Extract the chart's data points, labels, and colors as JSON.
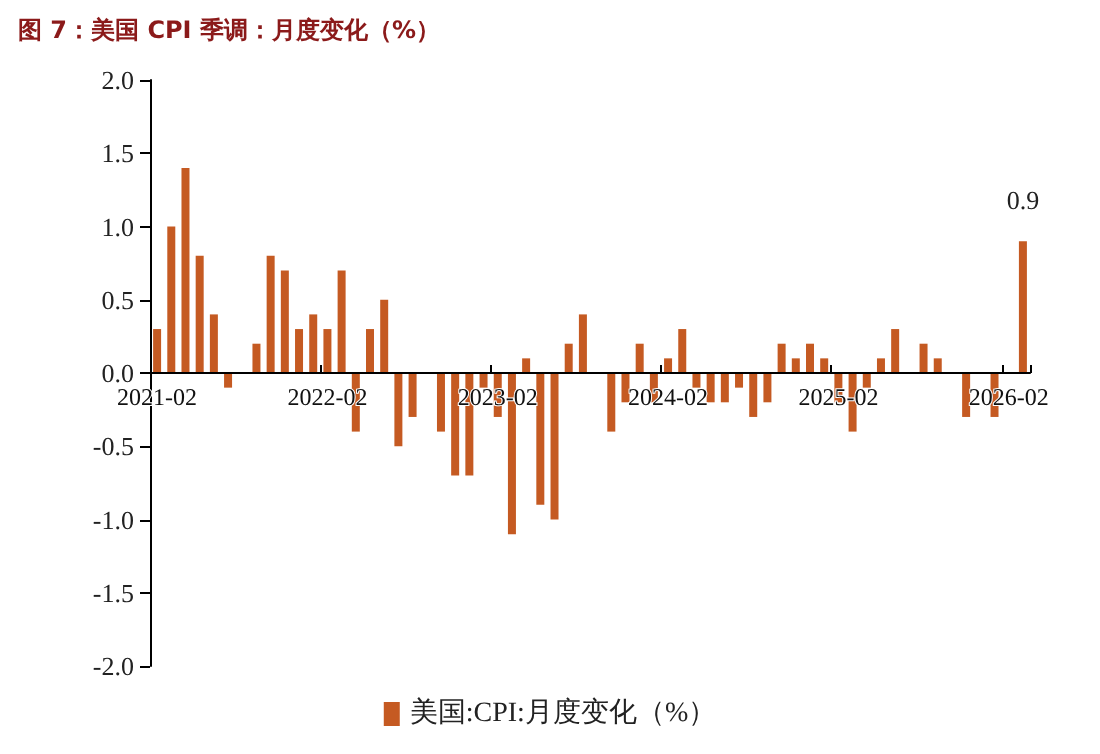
{
  "chart_data": {
    "type": "bar",
    "title": "图 7：美国 CPI 季调：月度变化（%）",
    "categories": [
      "2021-02",
      null,
      null,
      null,
      null,
      null,
      null,
      null,
      null,
      null,
      null,
      null,
      "2022-02",
      null,
      null,
      null,
      null,
      null,
      null,
      null,
      null,
      null,
      null,
      null,
      "2023-02",
      null,
      null,
      null,
      null,
      null,
      null,
      null,
      null,
      null,
      null,
      null,
      "2024-02",
      null,
      null,
      null,
      null,
      null,
      null,
      null,
      null,
      null,
      null,
      null,
      "2025-02",
      null,
      null,
      null,
      null,
      null,
      null,
      null,
      null,
      null,
      null,
      null,
      "2026-02",
      null
    ],
    "series": [
      {
        "name": "美国:CPI:月度变化（%）",
        "color": "#c55a22",
        "values": [
          0.3,
          1.0,
          1.4,
          0.8,
          0.4,
          -0.1,
          0,
          0.2,
          0.8,
          0.7,
          0.3,
          0.4,
          0.3,
          0.7,
          -0.4,
          0.3,
          0.5,
          -0.5,
          -0.3,
          0,
          -0.4,
          -0.7,
          -0.7,
          -0.1,
          -0.3,
          -1.1,
          0.1,
          -0.9,
          -1.0,
          0.2,
          0.4,
          0,
          -0.4,
          -0.2,
          0.2,
          -0.2,
          0.1,
          0.3,
          -0.1,
          -0.2,
          -0.2,
          -0.1,
          -0.3,
          -0.2,
          0.2,
          0.1,
          0.2,
          0.1,
          -0.2,
          -0.4,
          -0.1,
          0.1,
          0.3,
          0,
          0.2,
          0.1,
          0,
          -0.3,
          0,
          -0.3,
          0,
          0.9
        ],
        "value_labels": [
          null,
          null,
          null,
          null,
          null,
          null,
          null,
          null,
          null,
          null,
          null,
          null,
          null,
          null,
          null,
          null,
          null,
          null,
          null,
          null,
          null,
          null,
          null,
          null,
          null,
          null,
          null,
          null,
          null,
          null,
          null,
          null,
          null,
          null,
          null,
          null,
          null,
          null,
          null,
          null,
          null,
          null,
          null,
          null,
          null,
          null,
          null,
          null,
          null,
          null,
          null,
          null,
          null,
          null,
          null,
          null,
          null,
          null,
          null,
          null,
          null,
          "0.9"
        ]
      }
    ],
    "ylim": [
      -2,
      2
    ],
    "yticks": [
      {
        "value": -2,
        "label": "-2.0"
      },
      {
        "value": -1.5,
        "label": "-1.5"
      },
      {
        "value": -1,
        "label": "-1.0"
      },
      {
        "value": -0.5,
        "label": "-0.5"
      },
      {
        "value": 0,
        "label": "0.0"
      },
      {
        "value": 0.5,
        "label": "0.5"
      },
      {
        "value": 1,
        "label": "1.0"
      },
      {
        "value": 1.5,
        "label": "1.5"
      },
      {
        "value": 2,
        "label": "2.0"
      }
    ],
    "grid": false,
    "legend": "bottom"
  }
}
